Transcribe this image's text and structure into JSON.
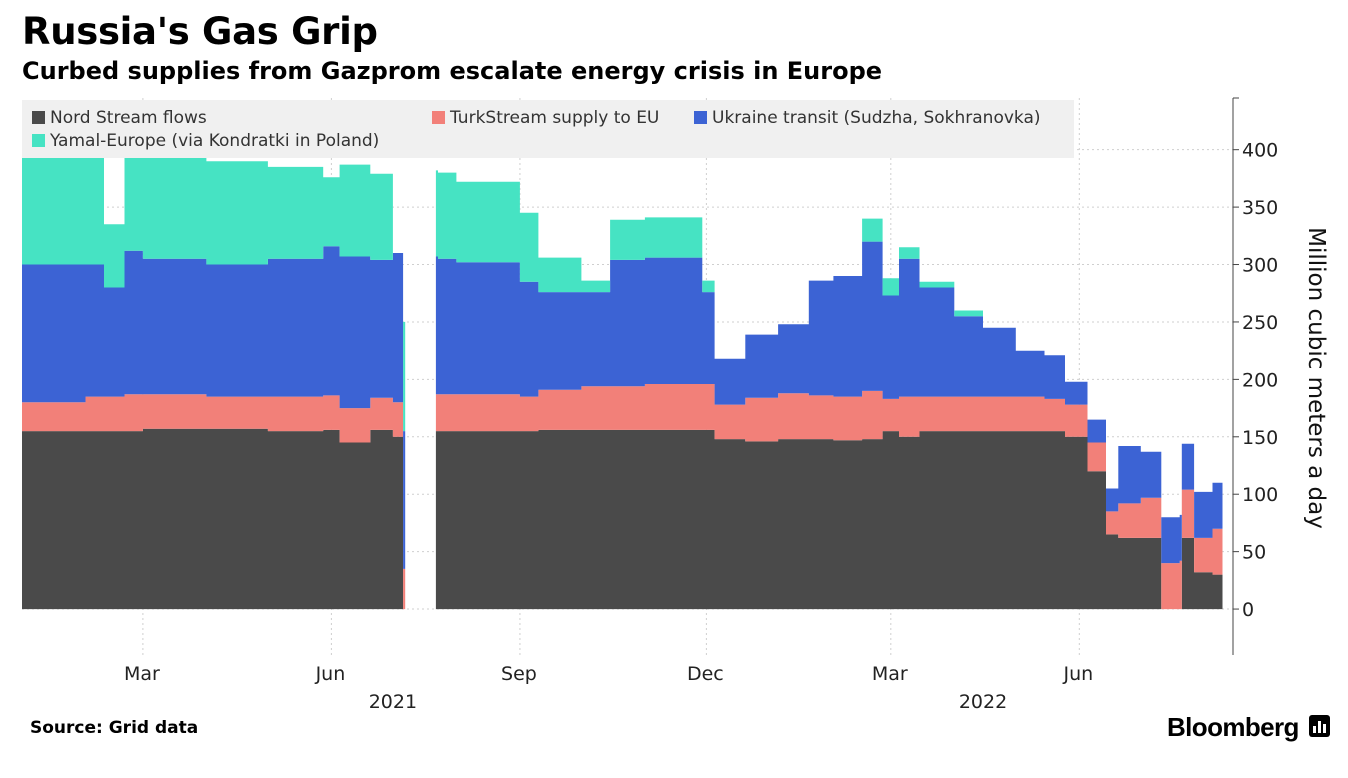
{
  "header": {
    "title": "Russia's Gas Grip",
    "subtitle": "Curbed supplies from Gazprom escalate energy crisis in Europe"
  },
  "footer": {
    "source": "Source: Grid data",
    "brand": "Bloomberg"
  },
  "chart_data": {
    "type": "area",
    "stacked": true,
    "title": "Russia's Gas Grip",
    "subtitle": "Curbed supplies from Gazprom escalate energy crisis in Europe",
    "ylabel": "Million cubic meters a day",
    "ylim": [
      -40,
      445
    ],
    "yticks": [
      0,
      50,
      100,
      150,
      200,
      250,
      300,
      350,
      400
    ],
    "xlim": [
      "2021-01-01",
      "2022-08-15"
    ],
    "xticks": [
      {
        "date": "2021-03-01",
        "label": "Mar"
      },
      {
        "date": "2021-06-01",
        "label": "Jun"
      },
      {
        "date": "2021-09-01",
        "label": "Sep"
      },
      {
        "date": "2021-12-01",
        "label": "Dec"
      },
      {
        "date": "2022-03-01",
        "label": "Mar"
      },
      {
        "date": "2022-06-01",
        "label": "Jun"
      }
    ],
    "year_labels": [
      {
        "date": "2021-07-01",
        "label": "2021"
      },
      {
        "date": "2022-04-15",
        "label": "2022"
      }
    ],
    "grid": true,
    "legend_position": "top-left",
    "x": [
      "2021-01-01",
      "2021-02-01",
      "2021-02-10",
      "2021-02-20",
      "2021-03-01",
      "2021-04-01",
      "2021-05-01",
      "2021-05-28",
      "2021-06-05",
      "2021-06-20",
      "2021-07-01",
      "2021-07-06",
      "2021-07-07",
      "2021-07-22",
      "2021-07-23",
      "2021-08-01",
      "2021-09-01",
      "2021-09-10",
      "2021-10-01",
      "2021-10-15",
      "2021-11-01",
      "2021-11-29",
      "2021-12-05",
      "2021-12-20",
      "2022-01-05",
      "2022-01-20",
      "2022-02-01",
      "2022-02-15",
      "2022-02-25",
      "2022-03-05",
      "2022-03-15",
      "2022-04-01",
      "2022-04-15",
      "2022-05-01",
      "2022-05-15",
      "2022-05-25",
      "2022-06-05",
      "2022-06-14",
      "2022-06-20",
      "2022-07-01",
      "2022-07-11",
      "2022-07-20",
      "2022-07-21",
      "2022-07-27",
      "2022-08-05"
    ],
    "series": [
      {
        "name": "Nord Stream flows",
        "color": "#4a4a4a",
        "values": [
          155,
          155,
          155,
          155,
          157,
          157,
          155,
          156,
          145,
          156,
          150,
          0,
          0,
          155,
          155,
          155,
          155,
          156,
          156,
          156,
          156,
          156,
          148,
          146,
          148,
          148,
          147,
          148,
          155,
          150,
          155,
          155,
          155,
          155,
          155,
          150,
          120,
          65,
          62,
          62,
          0,
          0,
          62,
          32,
          30
        ]
      },
      {
        "name": "TurkStream supply to EU",
        "color": "#f28079",
        "values": [
          25,
          30,
          30,
          32,
          30,
          28,
          30,
          30,
          30,
          28,
          30,
          35,
          0,
          32,
          32,
          32,
          30,
          35,
          38,
          38,
          40,
          40,
          30,
          38,
          40,
          38,
          38,
          42,
          28,
          35,
          30,
          30,
          30,
          30,
          28,
          28,
          25,
          20,
          30,
          35,
          40,
          42,
          42,
          30,
          40
        ]
      },
      {
        "name": "Ukraine transit (Sudzha, Sokhranovka)",
        "color": "#3c63d4",
        "values": [
          120,
          115,
          95,
          125,
          118,
          115,
          120,
          130,
          132,
          120,
          130,
          120,
          0,
          120,
          118,
          115,
          100,
          85,
          82,
          110,
          110,
          80,
          40,
          55,
          60,
          100,
          105,
          130,
          90,
          120,
          95,
          70,
          60,
          40,
          38,
          20,
          20,
          20,
          50,
          40,
          40,
          40,
          40,
          40,
          40
        ]
      },
      {
        "name": "Yamal-Europe (via Kondratki in Poland)",
        "color": "#46e3c3",
        "values": [
          95,
          95,
          55,
          90,
          90,
          90,
          80,
          60,
          80,
          75,
          0,
          95,
          0,
          75,
          75,
          70,
          60,
          30,
          10,
          35,
          35,
          10,
          0,
          0,
          0,
          0,
          0,
          20,
          15,
          10,
          5,
          5,
          0,
          0,
          0,
          0,
          0,
          0,
          0,
          0,
          0,
          0,
          0,
          0,
          0
        ]
      }
    ]
  }
}
